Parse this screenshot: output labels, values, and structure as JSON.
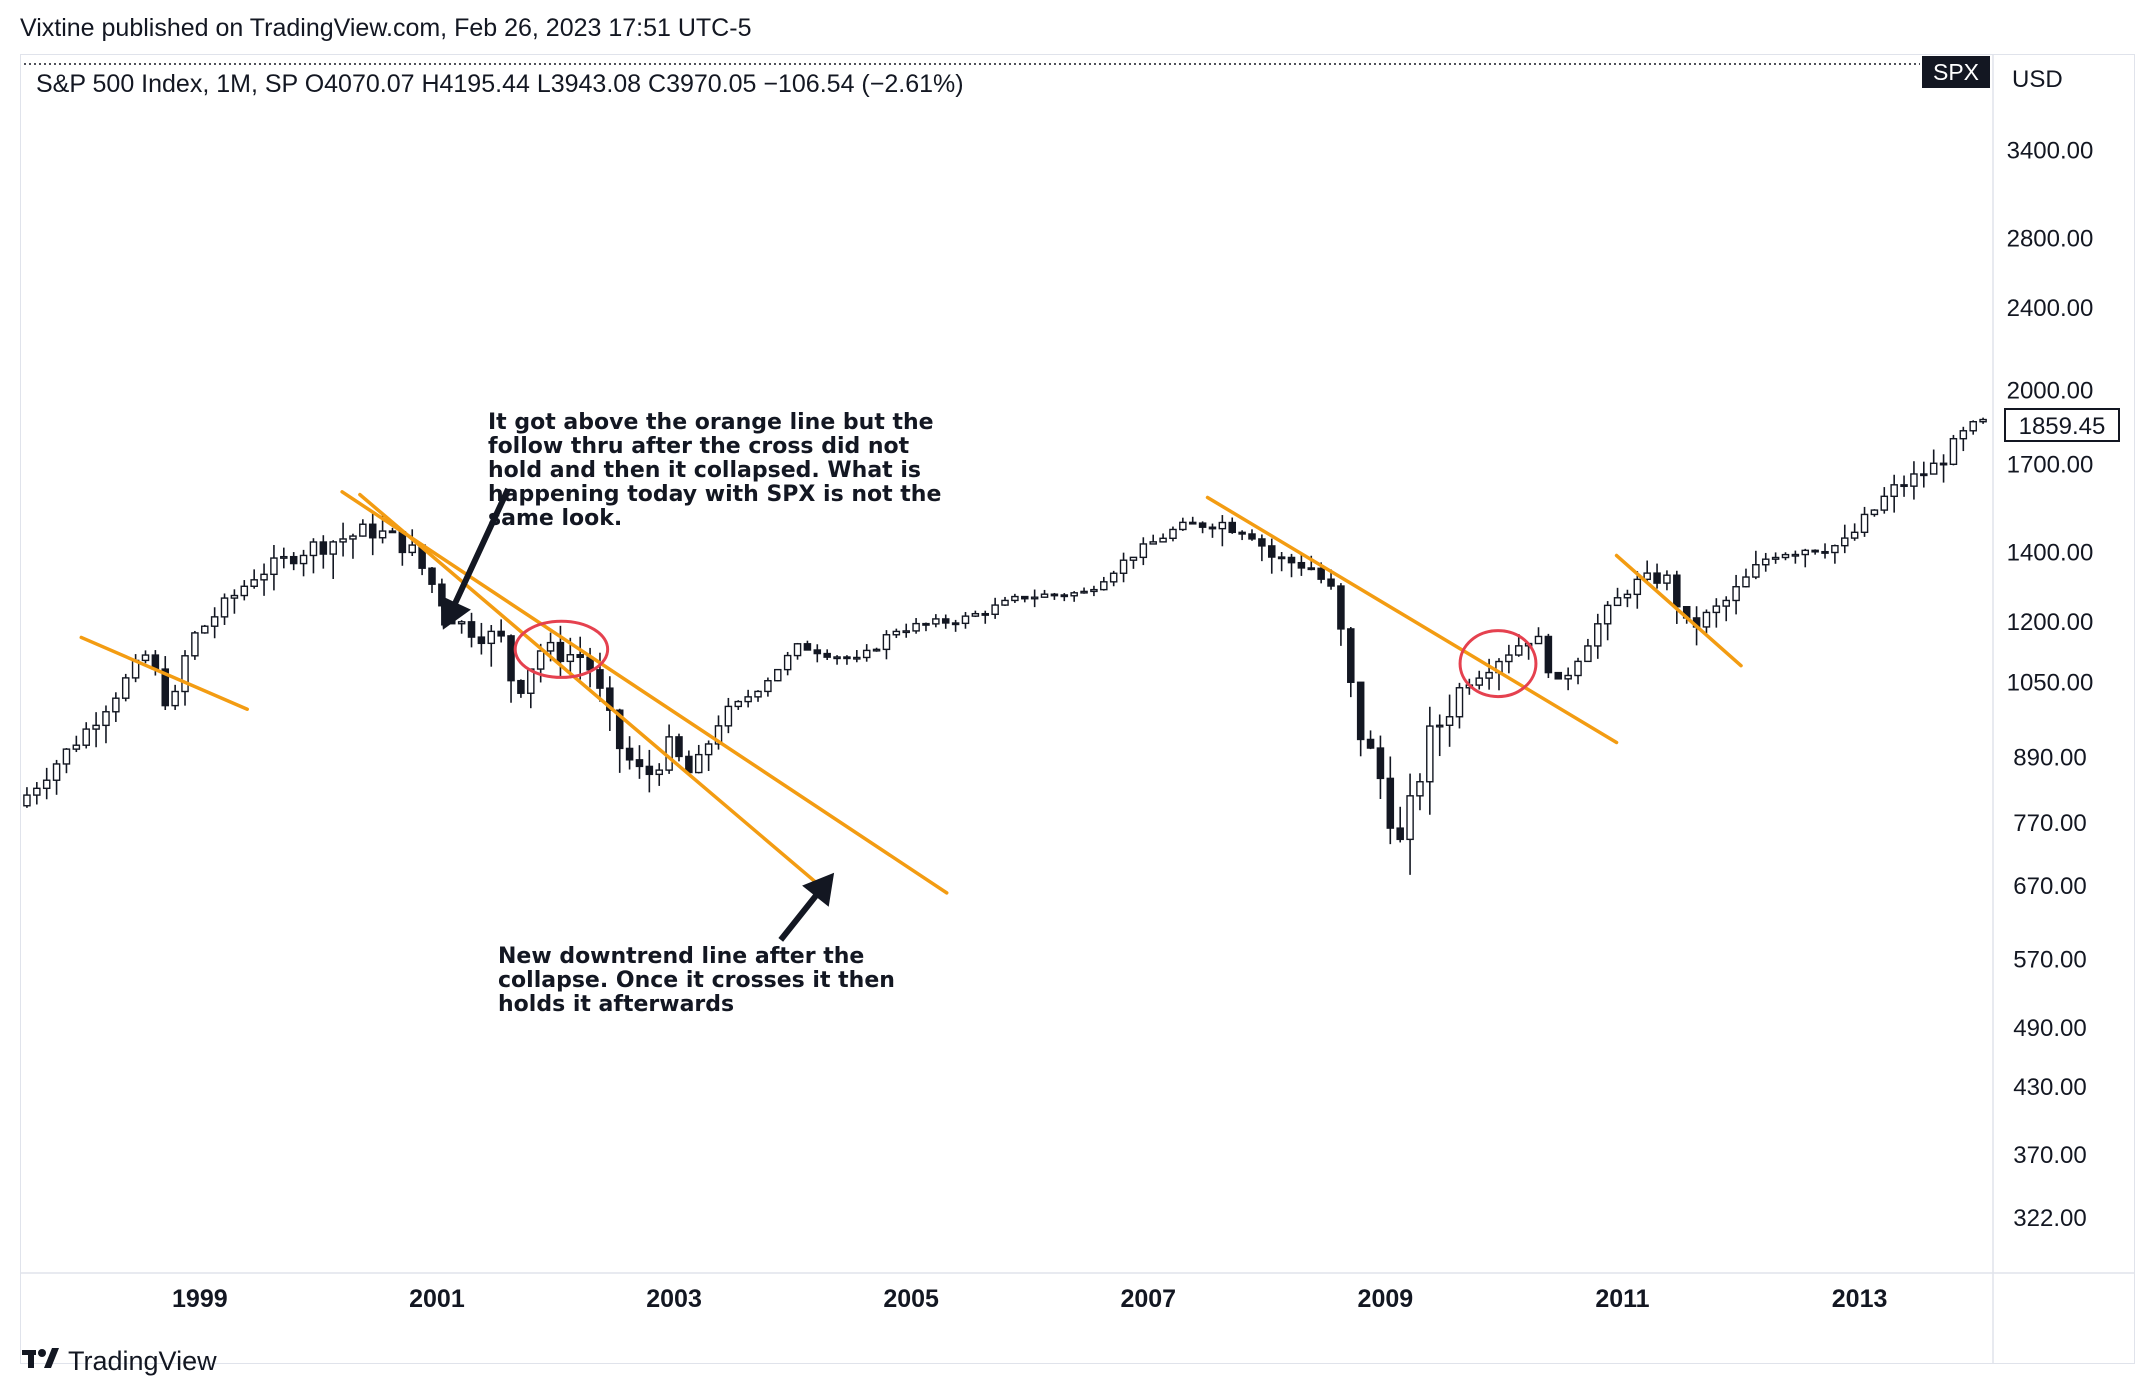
{
  "publisher_line": "Vixtine published on TradingView.com, Feb 26, 2023 17:51 UTC-5",
  "symbol_info": "S&P 500 Index, 1M, SP  O4070.07  H4195.44  L3943.08  C3970.05  −106.54 (−2.61%)",
  "badge": "SPX",
  "currency": "USD",
  "last_price": "1859.45",
  "footer_brand": "TradingView",
  "footer_logo_icon": "tradingview-logo-icon",
  "colors": {
    "trendline": "#f39c12",
    "candle": "#131722",
    "circle": "#e5414f",
    "background": "#ffffff"
  },
  "notes": {
    "top": "It got above the orange line but the\nfollow thru after the cross did not\nhold and then it collapsed.  What is\nhappening today with SPX is not the\nsame look.",
    "bottom": "New downtrend line after the\ncollapse. Once it crosses it then\nholds it afterwards"
  },
  "chart_data": {
    "type": "candlestick",
    "title": "S&P 500 Index, 1M, SP",
    "scale": "log",
    "ylim": [
      300,
      3800
    ],
    "xlim": [
      1997.5,
      2014.1
    ],
    "grid": false,
    "price_ticks": [
      "3400.00",
      "2800.00",
      "2400.00",
      "2000.00",
      "1700.00",
      "1400.00",
      "1200.00",
      "1050.00",
      "890.00",
      "770.00",
      "670.00",
      "570.00",
      "490.00",
      "430.00",
      "370.00",
      "322.00"
    ],
    "year_ticks": [
      "1999",
      "2001",
      "2003",
      "2005",
      "2007",
      "2009",
      "2011",
      "2013"
    ],
    "anchors": [
      [
        1997.5,
        800
      ],
      [
        1998.1,
        950
      ],
      [
        1998.6,
        1120
      ],
      [
        1998.8,
        980
      ],
      [
        1998.95,
        1150
      ],
      [
        1999.5,
        1330
      ],
      [
        2000.0,
        1420
      ],
      [
        2000.5,
        1470
      ],
      [
        2000.8,
        1420
      ],
      [
        2001.2,
        1200
      ],
      [
        2001.6,
        1150
      ],
      [
        2001.7,
        1020
      ],
      [
        2001.9,
        1130
      ],
      [
        2002.3,
        1110
      ],
      [
        2002.6,
        900
      ],
      [
        2002.8,
        850
      ],
      [
        2003.0,
        910
      ],
      [
        2003.2,
        850
      ],
      [
        2003.4,
        960
      ],
      [
        2003.8,
        1050
      ],
      [
        2004.1,
        1140
      ],
      [
        2004.6,
        1100
      ],
      [
        2004.9,
        1180
      ],
      [
        2005.5,
        1210
      ],
      [
        2006.0,
        1270
      ],
      [
        2006.5,
        1280
      ],
      [
        2006.9,
        1390
      ],
      [
        2007.3,
        1480
      ],
      [
        2007.6,
        1500
      ],
      [
        2007.9,
        1470
      ],
      [
        2008.1,
        1380
      ],
      [
        2008.4,
        1360
      ],
      [
        2008.6,
        1280
      ],
      [
        2008.8,
        960
      ],
      [
        2009.0,
        850
      ],
      [
        2009.17,
        730
      ],
      [
        2009.4,
        920
      ],
      [
        2009.7,
        1050
      ],
      [
        2010.0,
        1110
      ],
      [
        2010.3,
        1170
      ],
      [
        2010.5,
        1040
      ],
      [
        2010.8,
        1180
      ],
      [
        2011.1,
        1300
      ],
      [
        2011.4,
        1330
      ],
      [
        2011.6,
        1180
      ],
      [
        2011.9,
        1250
      ],
      [
        2012.3,
        1400
      ],
      [
        2012.7,
        1420
      ],
      [
        2012.9,
        1420
      ],
      [
        2013.3,
        1600
      ],
      [
        2013.7,
        1700
      ],
      [
        2013.95,
        1830
      ],
      [
        2014.1,
        1860
      ]
    ],
    "trendlines": [
      {
        "from": [
          1998.0,
          1160
        ],
        "to": [
          1999.4,
          990
        ]
      },
      {
        "from": [
          2000.2,
          1600
        ],
        "to": [
          2005.3,
          660
        ]
      },
      {
        "from": [
          2000.35,
          1590
        ],
        "to": [
          2004.2,
          675
        ]
      },
      {
        "from": [
          2007.5,
          1580
        ],
        "to": [
          2010.95,
          920
        ]
      },
      {
        "from": [
          2010.95,
          1390
        ],
        "to": [
          2012.0,
          1090
        ]
      }
    ],
    "circles": [
      {
        "center": [
          2002.05,
          1130
        ],
        "rx_years": 0.39,
        "ry_price_span": [
          1060,
          1200
        ]
      },
      {
        "center": [
          2009.95,
          1095
        ],
        "rx_years": 0.32,
        "ry_price_span": [
          1020,
          1180
        ]
      }
    ],
    "arrows": [
      {
        "from": [
          2001.6,
          1610
        ],
        "to": [
          2001.05,
          1180
        ]
      },
      {
        "from": [
          2003.9,
          595
        ],
        "to": [
          2004.35,
          690
        ]
      }
    ]
  }
}
